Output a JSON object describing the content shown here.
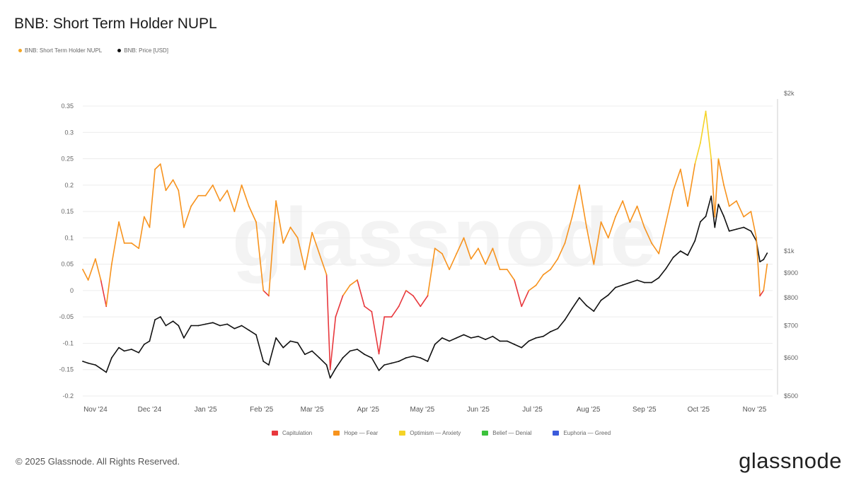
{
  "chart_data": {
    "type": "line",
    "title": "BNB: Short Term Holder NUPL",
    "legend": [
      {
        "name": "BNB: Short Term Holder NUPL",
        "color": "#f5a623"
      },
      {
        "name": "BNB: Price [USD]",
        "color": "#111111"
      }
    ],
    "legend_placement": "top-left",
    "x_ticks": [
      "Nov '24",
      "Dec '24",
      "Jan '25",
      "Feb '25",
      "Mar '25",
      "Apr '25",
      "May '25",
      "Jun '25",
      "Jul '25",
      "Aug '25",
      "Sep '25",
      "Oct '25",
      "Nov '25"
    ],
    "y_left": {
      "ticks": [
        "0.35",
        "0.3",
        "0.25",
        "0.2",
        "0.15",
        "0.1",
        "0.05",
        "0",
        "-0.05",
        "-0.1",
        "-0.15",
        "-0.2"
      ],
      "ylim": [
        -0.2,
        0.35
      ]
    },
    "y_right": {
      "ticks": [
        "$2k",
        "$1k",
        "$900",
        "$800",
        "$700",
        "$600",
        "$500"
      ],
      "scale": "log"
    },
    "x_range": [
      "2024-10-25",
      "2025-11-11"
    ],
    "grid": "horizontal",
    "series": [
      {
        "name": "BNB: Short Term Holder NUPL",
        "axis": "left",
        "points": [
          [
            "2024-10-25",
            0.04
          ],
          [
            "2024-10-28",
            0.02
          ],
          [
            "2024-11-01",
            0.06
          ],
          [
            "2024-11-04",
            0.02
          ],
          [
            "2024-11-07",
            -0.03
          ],
          [
            "2024-11-10",
            0.05
          ],
          [
            "2024-11-14",
            0.13
          ],
          [
            "2024-11-17",
            0.09
          ],
          [
            "2024-11-21",
            0.09
          ],
          [
            "2024-11-25",
            0.08
          ],
          [
            "2024-11-28",
            0.14
          ],
          [
            "2024-12-01",
            0.12
          ],
          [
            "2024-12-04",
            0.23
          ],
          [
            "2024-12-07",
            0.24
          ],
          [
            "2024-12-10",
            0.19
          ],
          [
            "2024-12-14",
            0.21
          ],
          [
            "2024-12-17",
            0.19
          ],
          [
            "2024-12-20",
            0.12
          ],
          [
            "2024-12-24",
            0.16
          ],
          [
            "2024-12-28",
            0.18
          ],
          [
            "2025-01-01",
            0.18
          ],
          [
            "2025-01-05",
            0.2
          ],
          [
            "2025-01-09",
            0.17
          ],
          [
            "2025-01-13",
            0.19
          ],
          [
            "2025-01-17",
            0.15
          ],
          [
            "2025-01-21",
            0.2
          ],
          [
            "2025-01-25",
            0.16
          ],
          [
            "2025-01-29",
            0.13
          ],
          [
            "2025-02-02",
            0.0
          ],
          [
            "2025-02-05",
            -0.01
          ],
          [
            "2025-02-09",
            0.17
          ],
          [
            "2025-02-13",
            0.09
          ],
          [
            "2025-02-17",
            0.12
          ],
          [
            "2025-02-21",
            0.1
          ],
          [
            "2025-02-25",
            0.04
          ],
          [
            "2025-03-01",
            0.11
          ],
          [
            "2025-03-05",
            0.07
          ],
          [
            "2025-03-09",
            0.03
          ],
          [
            "2025-03-11",
            -0.15
          ],
          [
            "2025-03-14",
            -0.05
          ],
          [
            "2025-03-18",
            -0.01
          ],
          [
            "2025-03-22",
            0.01
          ],
          [
            "2025-03-26",
            0.02
          ],
          [
            "2025-03-30",
            -0.03
          ],
          [
            "2025-04-03",
            -0.04
          ],
          [
            "2025-04-07",
            -0.12
          ],
          [
            "2025-04-10",
            -0.05
          ],
          [
            "2025-04-14",
            -0.05
          ],
          [
            "2025-04-18",
            -0.03
          ],
          [
            "2025-04-22",
            0.0
          ],
          [
            "2025-04-26",
            -0.01
          ],
          [
            "2025-04-30",
            -0.03
          ],
          [
            "2025-05-04",
            -0.01
          ],
          [
            "2025-05-08",
            0.08
          ],
          [
            "2025-05-12",
            0.07
          ],
          [
            "2025-05-16",
            0.04
          ],
          [
            "2025-05-20",
            0.07
          ],
          [
            "2025-05-24",
            0.1
          ],
          [
            "2025-05-28",
            0.06
          ],
          [
            "2025-06-01",
            0.08
          ],
          [
            "2025-06-05",
            0.05
          ],
          [
            "2025-06-09",
            0.08
          ],
          [
            "2025-06-13",
            0.04
          ],
          [
            "2025-06-17",
            0.04
          ],
          [
            "2025-06-21",
            0.02
          ],
          [
            "2025-06-25",
            -0.03
          ],
          [
            "2025-06-29",
            0.0
          ],
          [
            "2025-07-03",
            0.01
          ],
          [
            "2025-07-07",
            0.03
          ],
          [
            "2025-07-11",
            0.04
          ],
          [
            "2025-07-15",
            0.06
          ],
          [
            "2025-07-19",
            0.09
          ],
          [
            "2025-07-23",
            0.14
          ],
          [
            "2025-07-27",
            0.2
          ],
          [
            "2025-07-31",
            0.12
          ],
          [
            "2025-08-04",
            0.05
          ],
          [
            "2025-08-08",
            0.13
          ],
          [
            "2025-08-12",
            0.1
          ],
          [
            "2025-08-16",
            0.14
          ],
          [
            "2025-08-20",
            0.17
          ],
          [
            "2025-08-24",
            0.13
          ],
          [
            "2025-08-28",
            0.16
          ],
          [
            "2025-09-01",
            0.12
          ],
          [
            "2025-09-05",
            0.09
          ],
          [
            "2025-09-09",
            0.07
          ],
          [
            "2025-09-13",
            0.13
          ],
          [
            "2025-09-17",
            0.19
          ],
          [
            "2025-09-21",
            0.23
          ],
          [
            "2025-09-25",
            0.16
          ],
          [
            "2025-09-29",
            0.24
          ],
          [
            "2025-10-02",
            0.28
          ],
          [
            "2025-10-05",
            0.34
          ],
          [
            "2025-10-08",
            0.25
          ],
          [
            "2025-10-10",
            0.14
          ],
          [
            "2025-10-12",
            0.25
          ],
          [
            "2025-10-15",
            0.2
          ],
          [
            "2025-10-18",
            0.16
          ],
          [
            "2025-10-22",
            0.17
          ],
          [
            "2025-10-26",
            0.14
          ],
          [
            "2025-10-30",
            0.15
          ],
          [
            "2025-11-02",
            0.1
          ],
          [
            "2025-11-04",
            -0.01
          ],
          [
            "2025-11-06",
            0.0
          ],
          [
            "2025-11-08",
            0.05
          ]
        ]
      },
      {
        "name": "BNB: Price [USD]",
        "axis": "right",
        "points": [
          [
            "2024-10-25",
            590
          ],
          [
            "2024-10-28",
            585
          ],
          [
            "2024-11-01",
            580
          ],
          [
            "2024-11-04",
            570
          ],
          [
            "2024-11-07",
            560
          ],
          [
            "2024-11-10",
            600
          ],
          [
            "2024-11-14",
            630
          ],
          [
            "2024-11-17",
            620
          ],
          [
            "2024-11-21",
            625
          ],
          [
            "2024-11-25",
            615
          ],
          [
            "2024-11-28",
            640
          ],
          [
            "2024-12-01",
            650
          ],
          [
            "2024-12-04",
            720
          ],
          [
            "2024-12-07",
            730
          ],
          [
            "2024-12-10",
            700
          ],
          [
            "2024-12-14",
            715
          ],
          [
            "2024-12-17",
            700
          ],
          [
            "2024-12-20",
            660
          ],
          [
            "2024-12-24",
            700
          ],
          [
            "2024-12-28",
            700
          ],
          [
            "2025-01-01",
            705
          ],
          [
            "2025-01-05",
            710
          ],
          [
            "2025-01-09",
            700
          ],
          [
            "2025-01-13",
            705
          ],
          [
            "2025-01-17",
            690
          ],
          [
            "2025-01-21",
            700
          ],
          [
            "2025-01-25",
            685
          ],
          [
            "2025-01-29",
            670
          ],
          [
            "2025-02-02",
            590
          ],
          [
            "2025-02-05",
            580
          ],
          [
            "2025-02-09",
            660
          ],
          [
            "2025-02-13",
            630
          ],
          [
            "2025-02-17",
            650
          ],
          [
            "2025-02-21",
            645
          ],
          [
            "2025-02-25",
            610
          ],
          [
            "2025-03-01",
            620
          ],
          [
            "2025-03-05",
            600
          ],
          [
            "2025-03-09",
            580
          ],
          [
            "2025-03-11",
            545
          ],
          [
            "2025-03-14",
            570
          ],
          [
            "2025-03-18",
            600
          ],
          [
            "2025-03-22",
            620
          ],
          [
            "2025-03-26",
            625
          ],
          [
            "2025-03-30",
            610
          ],
          [
            "2025-04-03",
            600
          ],
          [
            "2025-04-07",
            565
          ],
          [
            "2025-04-10",
            580
          ],
          [
            "2025-04-14",
            585
          ],
          [
            "2025-04-18",
            590
          ],
          [
            "2025-04-22",
            600
          ],
          [
            "2025-04-26",
            605
          ],
          [
            "2025-04-30",
            600
          ],
          [
            "2025-05-04",
            590
          ],
          [
            "2025-05-08",
            640
          ],
          [
            "2025-05-12",
            660
          ],
          [
            "2025-05-16",
            650
          ],
          [
            "2025-05-20",
            660
          ],
          [
            "2025-05-24",
            670
          ],
          [
            "2025-05-28",
            660
          ],
          [
            "2025-06-01",
            665
          ],
          [
            "2025-06-05",
            655
          ],
          [
            "2025-06-09",
            665
          ],
          [
            "2025-06-13",
            650
          ],
          [
            "2025-06-17",
            650
          ],
          [
            "2025-06-21",
            640
          ],
          [
            "2025-06-25",
            630
          ],
          [
            "2025-06-29",
            650
          ],
          [
            "2025-07-03",
            660
          ],
          [
            "2025-07-07",
            665
          ],
          [
            "2025-07-11",
            680
          ],
          [
            "2025-07-15",
            690
          ],
          [
            "2025-07-19",
            720
          ],
          [
            "2025-07-23",
            760
          ],
          [
            "2025-07-27",
            800
          ],
          [
            "2025-07-31",
            770
          ],
          [
            "2025-08-04",
            750
          ],
          [
            "2025-08-08",
            790
          ],
          [
            "2025-08-12",
            810
          ],
          [
            "2025-08-16",
            840
          ],
          [
            "2025-08-20",
            850
          ],
          [
            "2025-08-24",
            860
          ],
          [
            "2025-08-28",
            870
          ],
          [
            "2025-09-01",
            860
          ],
          [
            "2025-09-05",
            860
          ],
          [
            "2025-09-09",
            880
          ],
          [
            "2025-09-13",
            920
          ],
          [
            "2025-09-17",
            970
          ],
          [
            "2025-09-21",
            1000
          ],
          [
            "2025-09-25",
            980
          ],
          [
            "2025-09-29",
            1050
          ],
          [
            "2025-10-02",
            1150
          ],
          [
            "2025-10-05",
            1180
          ],
          [
            "2025-10-08",
            1300
          ],
          [
            "2025-10-10",
            1120
          ],
          [
            "2025-10-12",
            1250
          ],
          [
            "2025-10-15",
            1180
          ],
          [
            "2025-10-18",
            1100
          ],
          [
            "2025-10-22",
            1110
          ],
          [
            "2025-10-26",
            1120
          ],
          [
            "2025-10-30",
            1100
          ],
          [
            "2025-11-02",
            1050
          ],
          [
            "2025-11-04",
            950
          ],
          [
            "2025-11-06",
            960
          ],
          [
            "2025-11-08",
            990
          ]
        ]
      }
    ],
    "nupl_zones": [
      {
        "name": "Capitulation",
        "color": "#e8383d"
      },
      {
        "name": "Hope — Fear",
        "color": "#f7931e"
      },
      {
        "name": "Optimism — Anxiety",
        "color": "#f5d327"
      },
      {
        "name": "Belief — Denial",
        "color": "#3cc23c"
      },
      {
        "name": "Euphoria — Greed",
        "color": "#3b5bdb"
      }
    ]
  },
  "watermark": "glassnode",
  "footer": {
    "copyright": "© 2025 Glassnode. All Rights Reserved.",
    "brand": "glassnode"
  }
}
